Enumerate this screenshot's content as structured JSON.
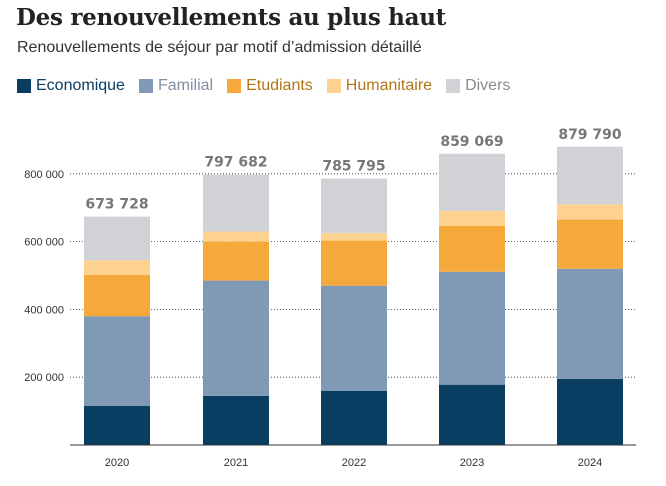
{
  "title": "Des renouvellements au plus haut",
  "subtitle": "Renouvellements de séjour par motif d’admission détaillé",
  "chart_data": {
    "type": "bar",
    "stacked": true,
    "categories": [
      "2020",
      "2021",
      "2022",
      "2023",
      "2024"
    ],
    "series": [
      {
        "name": "Economique",
        "color": "#0a3d62",
        "values": [
          115000,
          145000,
          160000,
          178000,
          195000
        ]
      },
      {
        "name": "Familial",
        "color": "#8099b5",
        "values": [
          265000,
          340000,
          310000,
          333000,
          325000
        ]
      },
      {
        "name": "Etudiants",
        "color": "#f5a93a",
        "values": [
          122000,
          115000,
          133000,
          135000,
          145000
        ]
      },
      {
        "name": "Humanitaire",
        "color": "#fcd28e",
        "values": [
          43000,
          30000,
          22000,
          45000,
          45000
        ]
      },
      {
        "name": "Divers",
        "color": "#d0d2d5",
        "values": [
          128728,
          167682,
          160795,
          168069,
          169790
        ]
      }
    ],
    "totals": [
      "673 728",
      "797 682",
      "785 795",
      "859 069",
      "879 790"
    ],
    "total_values": [
      673728,
      797682,
      785795,
      859069,
      879790
    ],
    "ylim": [
      0,
      880000
    ],
    "yticks": [
      200000,
      400000,
      600000,
      800000
    ],
    "ytick_labels": [
      "200 000",
      "400 000",
      "600 000",
      "800 000"
    ],
    "grid": true,
    "legend_position": "top-left"
  }
}
